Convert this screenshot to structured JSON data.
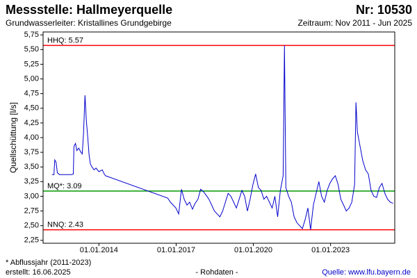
{
  "chart_data": {
    "type": "line",
    "title": "Messstelle: Hallmeyerquelle",
    "number": "Nr: 10530",
    "subtitle": "Grundwasserleiter: Kristallines Grundgebirge",
    "period": "Zeitraum: Nov 2011 - Jun 2025",
    "y_label": "Quellschüttung [l/s]",
    "footnote": "* Abflussjahr (2011-2023)",
    "created": "erstellt:  16.06.2025",
    "data_kind": "- Rohdaten -",
    "source": "Quelle: www.lfu.bayern.de",
    "xlim": [
      "2011-11-01",
      "2025-06-30"
    ],
    "xticks": [
      {
        "value": "2014-01-01",
        "label": "01.01.2014"
      },
      {
        "value": "2017-01-01",
        "label": "01.01.2017"
      },
      {
        "value": "2020-01-01",
        "label": "01.01.2020"
      },
      {
        "value": "2023-01-01",
        "label": "01.01.2023"
      }
    ],
    "ylim": [
      2.2,
      5.8
    ],
    "yticks": [
      {
        "value": 2.25,
        "label": "2,25"
      },
      {
        "value": 2.5,
        "label": "2,50"
      },
      {
        "value": 2.75,
        "label": "2,75"
      },
      {
        "value": 3.0,
        "label": "3,00"
      },
      {
        "value": 3.25,
        "label": "3,25"
      },
      {
        "value": 3.5,
        "label": "3,50"
      },
      {
        "value": 3.75,
        "label": "3,75"
      },
      {
        "value": 4.0,
        "label": "4,00"
      },
      {
        "value": 4.25,
        "label": "4,25"
      },
      {
        "value": 4.5,
        "label": "4,50"
      },
      {
        "value": 4.75,
        "label": "4,75"
      },
      {
        "value": 5.0,
        "label": "5,00"
      },
      {
        "value": 5.25,
        "label": "5,25"
      },
      {
        "value": 5.5,
        "label": "5,50"
      },
      {
        "value": 5.75,
        "label": "5,75"
      }
    ],
    "reference_lines": [
      {
        "label": "HHQ: 5.57",
        "value": 5.57,
        "color": "#ff0000"
      },
      {
        "label": "MQ*: 3.09",
        "value": 3.09,
        "color": "#009900"
      },
      {
        "label": "NNQ: 2.43",
        "value": 2.43,
        "color": "#ff0000"
      }
    ],
    "x": [
      "2012-03-06",
      "2012-04-03",
      "2012-04-15",
      "2012-05-03",
      "2012-05-21",
      "2012-06-21",
      "2012-12-06",
      "2013-01-03",
      "2013-01-12",
      "2013-02-03",
      "2013-02-21",
      "2013-03-21",
      "2013-04-21",
      "2013-05-09",
      "2013-05-27",
      "2013-06-18",
      "2013-07-06",
      "2013-07-27",
      "2013-08-15",
      "2013-09-03",
      "2013-09-24",
      "2013-10-24",
      "2013-11-21",
      "2014-01-01",
      "2014-02-18",
      "2014-03-18",
      "2014-04-06",
      "2016-09-03",
      "2016-10-12",
      "2016-11-20",
      "2016-12-29",
      "2017-02-06",
      "2017-03-17",
      "2017-04-25",
      "2017-06-03",
      "2017-07-12",
      "2017-08-20",
      "2017-09-28",
      "2017-11-06",
      "2017-12-15",
      "2018-01-23",
      "2018-03-03",
      "2018-04-11",
      "2018-05-20",
      "2018-06-28",
      "2018-08-06",
      "2018-09-14",
      "2018-10-23",
      "2018-12-01",
      "2019-01-09",
      "2019-02-17",
      "2019-03-28",
      "2019-05-06",
      "2019-06-14",
      "2019-07-23",
      "2019-08-31",
      "2019-10-09",
      "2019-11-17",
      "2019-12-26",
      "2020-02-03",
      "2020-03-13",
      "2020-04-21",
      "2020-05-30",
      "2020-07-08",
      "2020-08-16",
      "2020-09-24",
      "2020-11-02",
      "2020-12-11",
      "2021-01-19",
      "2021-02-27",
      "2021-03-18",
      "2021-04-07",
      "2021-05-16",
      "2021-06-24",
      "2021-08-02",
      "2021-09-10",
      "2021-10-19",
      "2021-11-27",
      "2022-01-05",
      "2022-02-13",
      "2022-03-24",
      "2022-05-02",
      "2022-06-10",
      "2022-07-19",
      "2022-08-27",
      "2022-10-05",
      "2022-11-13",
      "2022-12-22",
      "2023-01-30",
      "2023-03-10",
      "2023-04-18",
      "2023-05-27",
      "2023-07-05",
      "2023-08-13",
      "2023-09-21",
      "2023-10-30",
      "2023-12-08",
      "2023-12-28",
      "2024-01-16",
      "2024-02-24",
      "2024-04-03",
      "2024-05-12",
      "2024-06-20",
      "2024-07-29",
      "2024-09-06",
      "2024-10-15",
      "2024-11-23",
      "2025-01-01",
      "2025-02-09",
      "2025-03-20",
      "2025-04-28",
      "2025-06-06"
    ],
    "series": [
      {
        "name": "Quellschüttung",
        "color": "#0000cc",
        "values": [
          3.37,
          3.37,
          3.62,
          3.58,
          3.4,
          3.37,
          3.37,
          3.38,
          3.85,
          3.9,
          3.78,
          3.82,
          3.75,
          3.72,
          4.05,
          4.72,
          4.3,
          4.0,
          3.7,
          3.55,
          3.5,
          3.45,
          3.48,
          3.42,
          3.45,
          3.38,
          3.35,
          2.97,
          2.9,
          2.85,
          2.8,
          2.7,
          3.12,
          2.95,
          2.85,
          2.9,
          2.78,
          2.88,
          2.95,
          3.12,
          3.08,
          3.02,
          2.95,
          2.85,
          2.75,
          2.7,
          2.65,
          2.75,
          2.9,
          3.05,
          3.0,
          2.9,
          2.8,
          2.95,
          3.1,
          3.0,
          2.75,
          2.95,
          3.2,
          3.38,
          3.15,
          3.1,
          2.95,
          3.0,
          2.9,
          2.8,
          3.0,
          2.65,
          3.1,
          3.35,
          5.57,
          3.15,
          3.0,
          2.9,
          2.65,
          2.55,
          2.5,
          2.45,
          2.6,
          2.8,
          2.43,
          2.85,
          3.05,
          3.25,
          3.0,
          2.9,
          3.1,
          3.22,
          3.3,
          3.35,
          3.2,
          2.95,
          2.85,
          2.75,
          2.8,
          2.9,
          3.2,
          4.6,
          4.1,
          3.85,
          3.6,
          3.45,
          3.38,
          3.1,
          3.0,
          2.98,
          3.15,
          3.22,
          3.05,
          2.95,
          2.9,
          2.88
        ]
      }
    ]
  }
}
